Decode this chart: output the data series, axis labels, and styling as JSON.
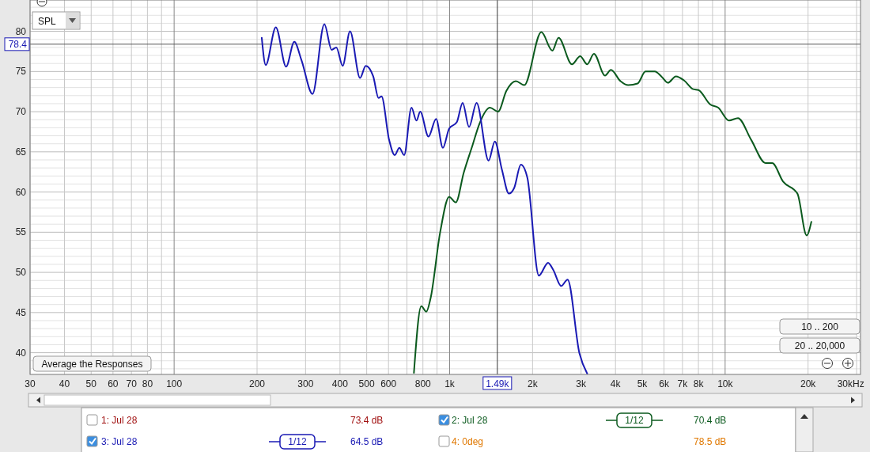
{
  "chart_data": {
    "type": "line",
    "xlabel": "Hz",
    "log": "x",
    "grid": true,
    "legend": "bottom",
    "line_style": "solid",
    "marker": "none",
    "xlim": [
      30,
      31000
    ],
    "ylim": [
      37.3,
      83.9
    ],
    "xticks": [
      30,
      40,
      50,
      60,
      70,
      80,
      {
        "value": 90,
        "label": null
      },
      100,
      200,
      300,
      400,
      500,
      600,
      {
        "value": 700,
        "label": null
      },
      800,
      {
        "value": 900,
        "label": null
      },
      {
        "value": 1000,
        "label": "1k"
      },
      {
        "value": 2000,
        "label": "2k"
      },
      {
        "value": 3000,
        "label": "3k"
      },
      {
        "value": 4000,
        "label": "4k"
      },
      {
        "value": 5000,
        "label": "5k"
      },
      {
        "value": 6000,
        "label": "6k"
      },
      {
        "value": 7000,
        "label": "7k"
      },
      {
        "value": 8000,
        "label": "8k"
      },
      {
        "value": 9000,
        "label": null
      },
      {
        "value": 10000,
        "label": "10k"
      },
      {
        "value": 20000,
        "label": "20k"
      },
      {
        "value": 30000,
        "label": "30k"
      }
    ],
    "yticks": [
      40,
      45,
      50,
      55,
      60,
      65,
      70,
      75,
      80
    ],
    "ref_lines": [
      {
        "axis": "y",
        "value": 78.4,
        "label": "78.4",
        "color": "#555555"
      },
      {
        "axis": "x",
        "value": 1490,
        "label": "1.49k",
        "color": "#333333"
      }
    ],
    "series": [
      {
        "name": "2: Jul 28",
        "color": "#0b5a1e",
        "x": [
          742,
          789,
          823,
          852,
          924,
          996,
          1053,
          1125,
          1213,
          1283,
          1401,
          1499,
          1607,
          1740,
          1865,
          2152,
          2360,
          2485,
          2780,
          2978,
          3158,
          3340,
          3665,
          3850,
          4170,
          4450,
          4810,
          5140,
          5555,
          5865,
          6200,
          6630,
          7090,
          7660,
          8000,
          8830,
          9440,
          10320,
          11130,
          12430,
          14020,
          14820,
          16230,
          18300,
          19760,
          20560
        ],
        "values": [
          37.5,
          45.8,
          45.1,
          46.7,
          55.0,
          59.4,
          58.7,
          62.4,
          65.9,
          68.5,
          70.5,
          70.0,
          72.6,
          73.8,
          73.3,
          79.9,
          77.6,
          79.2,
          75.9,
          76.9,
          75.9,
          77.2,
          74.5,
          75.2,
          73.8,
          73.3,
          73.5,
          75.0,
          75.0,
          74.4,
          73.6,
          74.4,
          73.9,
          72.8,
          72.7,
          70.9,
          70.5,
          68.9,
          69.2,
          66.5,
          63.6,
          63.6,
          61.3,
          59.8,
          54.6,
          56.3
        ]
      },
      {
        "name": "3: Jul 28",
        "color": "#1a1ab4",
        "x": [
          208,
          215,
          234,
          255,
          273,
          290,
          318,
          351,
          373,
          388,
          409,
          435,
          473,
          496,
          528,
          552,
          566,
          603,
          632,
          657,
          684,
          727,
          758,
          782,
          838,
          893,
          945,
          996,
          1062,
          1115,
          1176,
          1253,
          1385,
          1459,
          1548,
          1641,
          1715,
          1814,
          1914,
          2108,
          2277,
          2378,
          2540,
          2680,
          2960,
          3158
        ],
        "values": [
          79.2,
          75.8,
          80.5,
          75.6,
          78.7,
          76.4,
          72.2,
          80.9,
          77.7,
          78.0,
          75.7,
          80.0,
          74.2,
          75.7,
          74.4,
          71.7,
          71.9,
          66.5,
          64.6,
          65.5,
          64.6,
          70.5,
          68.9,
          70.0,
          66.9,
          69.1,
          65.5,
          67.9,
          68.7,
          71.1,
          68.1,
          71.1,
          63.9,
          66.3,
          62.8,
          59.8,
          60.5,
          63.4,
          61.8,
          49.6,
          51.2,
          50.3,
          48.3,
          49.1,
          39.9,
          37.4
        ]
      }
    ],
    "annotations": [
      "SPL",
      "Average the Responses",
      "10 .. 200",
      "20 .. 20,000",
      "1: Jul 28",
      "73.4 dB",
      "1/12",
      "70.4 dB",
      "1/12",
      "64.5 dB",
      "4: 0deg",
      "78.5 dB"
    ]
  }
}
